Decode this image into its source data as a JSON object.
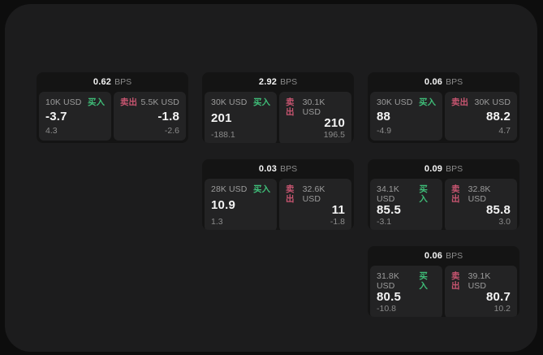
{
  "colors": {
    "background": "#0d0d0d",
    "panel": "#1c1c1d",
    "card": "#141414",
    "subcard": "#232324",
    "buy_green": "#3fbd78",
    "sell_red": "#c75570",
    "text_primary": "#f4f4f4",
    "text_label": "#9c9c9c",
    "text_muted": "#8b8b8b"
  },
  "labels": {
    "bps_unit": "BPS",
    "buy": "买入",
    "sell": "卖出"
  },
  "cards": [
    {
      "bps": "0.62",
      "buy": {
        "amount": "10K USD",
        "value": "-3.7",
        "delta": "4.3"
      },
      "sell": {
        "amount": "5.5K USD",
        "value": "-1.8",
        "delta": "-2.6"
      }
    },
    {
      "bps": "2.92",
      "buy": {
        "amount": "30K USD",
        "value": "201",
        "delta": "-188.1"
      },
      "sell": {
        "amount": "30.1K USD",
        "value": "210",
        "delta": "196.5"
      }
    },
    {
      "bps": "0.06",
      "buy": {
        "amount": "30K USD",
        "value": "88",
        "delta": "-4.9"
      },
      "sell": {
        "amount": "30K USD",
        "value": "88.2",
        "delta": "4.7"
      }
    },
    {
      "bps": "0.03",
      "buy": {
        "amount": "28K USD",
        "value": "10.9",
        "delta": "1.3"
      },
      "sell": {
        "amount": "32.6K USD",
        "value": "11",
        "delta": "-1.8"
      }
    },
    {
      "bps": "0.09",
      "buy": {
        "amount": "34.1K USD",
        "value": "85.5",
        "delta": "-3.1"
      },
      "sell": {
        "amount": "32.8K USD",
        "value": "85.8",
        "delta": "3.0"
      }
    },
    {
      "bps": "0.06",
      "buy": {
        "amount": "31.8K USD",
        "value": "80.5",
        "delta": "-10.8"
      },
      "sell": {
        "amount": "39.1K USD",
        "value": "80.7",
        "delta": "10.2"
      }
    }
  ]
}
